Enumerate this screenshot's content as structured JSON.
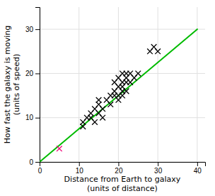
{
  "chart_data": {
    "type": "scatter",
    "xlabel": "Distance from Earth to galaxy\n(units of distance)",
    "ylabel": "How fast the galaxy is moving\n(units of speed)",
    "xlim": [
      0,
      42
    ],
    "ylim": [
      0,
      35
    ],
    "xticks": [
      0,
      10,
      20,
      30,
      40
    ],
    "yticks": [
      0,
      10,
      20,
      30
    ],
    "grid": true,
    "series": [
      {
        "type": "scatter",
        "marker": "x",
        "x": [
          5,
          11,
          11,
          12,
          13,
          13,
          14,
          14,
          15,
          15,
          15,
          16,
          16,
          17,
          18,
          18,
          19,
          19,
          19,
          20,
          20,
          20,
          20,
          21,
          21,
          21,
          21,
          21,
          22,
          22,
          22,
          22,
          23,
          23,
          24,
          25,
          28,
          29,
          30
        ],
        "values": [
          3,
          8,
          9,
          10,
          10,
          11,
          9,
          12,
          11,
          13,
          14,
          10,
          12,
          14,
          13,
          15,
          15,
          16,
          18,
          14,
          15,
          17,
          19,
          15,
          16,
          17,
          18,
          20,
          16,
          18,
          19,
          20,
          18,
          20,
          19,
          20,
          25,
          26,
          25
        ],
        "colors": [
          "#ee0077",
          "#000000",
          "#000000",
          "#000000",
          "#000000",
          "#000000",
          "#000000",
          "#000000",
          "#000000",
          "#000000",
          "#000000",
          "#000000",
          "#000000",
          "#000000",
          "#000000",
          "#000000",
          "#000000",
          "#000000",
          "#000000",
          "#000000",
          "#000000",
          "#000000",
          "#000000",
          "#000000",
          "#000000",
          "#000000",
          "#000000",
          "#000000",
          "#000000",
          "#000000",
          "#000000",
          "#000000",
          "#000000",
          "#000000",
          "#000000",
          "#000000",
          "#000000",
          "#000000",
          "#000000"
        ]
      },
      {
        "type": "line",
        "x": [
          0,
          40
        ],
        "values": [
          0,
          30
        ],
        "color": "#00bb00"
      }
    ]
  }
}
